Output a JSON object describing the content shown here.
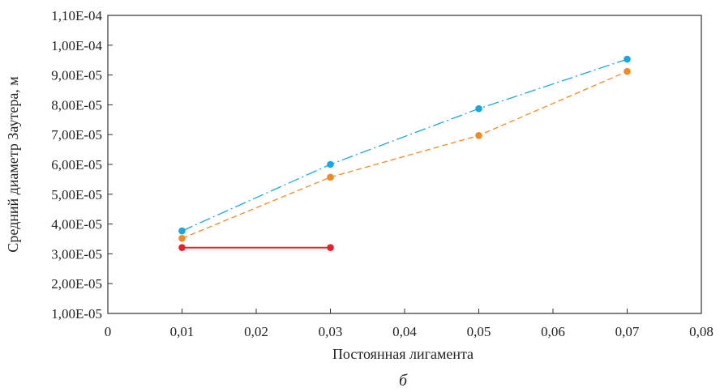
{
  "chart_data": {
    "type": "line",
    "title": "",
    "xlabel": "Постоянная лигамента",
    "ylabel": "Средний диаметр Заутера, м",
    "caption": "б",
    "xlim": [
      0,
      0.08
    ],
    "ylim": [
      1e-05,
      0.00011
    ],
    "x_ticks": [
      0,
      0.01,
      0.02,
      0.03,
      0.04,
      0.05,
      0.06,
      0.07,
      0.08
    ],
    "x_tick_labels": [
      "0",
      "0,01",
      "0,02",
      "0,03",
      "0,04",
      "0,05",
      "0,06",
      "0,07",
      "0,08"
    ],
    "y_ticks": [
      1e-05,
      2e-05,
      3e-05,
      4e-05,
      5e-05,
      6e-05,
      7e-05,
      8e-05,
      9e-05,
      0.0001,
      0.00011
    ],
    "y_tick_labels": [
      "1,00E-05",
      "2,00E-05",
      "3,00E-05",
      "4,00E-05",
      "5,00E-05",
      "6,00E-05",
      "7,00E-05",
      "8,00E-05",
      "9,00E-05",
      "1,00E-04",
      "1,10E-04"
    ],
    "grid": false,
    "legend": false,
    "series": [
      {
        "color": "#1aa7e0",
        "line_style": "dash-dot",
        "marker": "circle",
        "x": [
          0.01,
          0.03,
          0.05,
          0.07
        ],
        "y": [
          3.77e-05,
          6e-05,
          7.87e-05,
          9.53e-05
        ]
      },
      {
        "color": "#f08a24",
        "line_style": "dashed",
        "marker": "circle",
        "x": [
          0.01,
          0.03,
          0.05,
          0.07
        ],
        "y": [
          3.52e-05,
          5.57e-05,
          6.97e-05,
          9.12e-05
        ]
      },
      {
        "color": "#e8202a",
        "line_style": "solid",
        "marker": "circle",
        "x": [
          0.01,
          0.03
        ],
        "y": [
          3.21e-05,
          3.21e-05
        ]
      }
    ]
  }
}
